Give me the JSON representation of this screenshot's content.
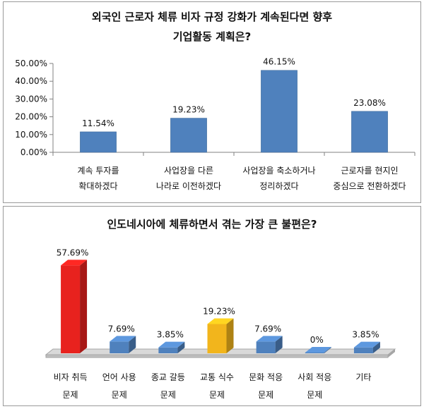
{
  "chart_data": [
    {
      "type": "bar",
      "title_lines": [
        "외국인 근로자 체류 비자 규정 강화가 계속된다면 향후",
        "기업활동 계획은?"
      ],
      "categories": [
        [
          "계속 투자를",
          "확대하겠다"
        ],
        [
          "사업장을 다른",
          "나라로 이전하겠다"
        ],
        [
          "사업장을 축소하거나",
          "정리하겠다"
        ],
        [
          "근로자를 현지인",
          "중심으로 전환하겠다"
        ]
      ],
      "values": [
        11.54,
        19.23,
        46.15,
        23.08
      ],
      "data_labels": [
        "11.54%",
        "19.23%",
        "46.15%",
        "23.08%"
      ],
      "yticks": [
        "0.00%",
        "10.00%",
        "20.00%",
        "30.00%",
        "40.00%",
        "50.00%"
      ],
      "ylim": [
        0,
        50
      ],
      "grid": false,
      "bar_color": "#4f81bd"
    },
    {
      "type": "bar",
      "subtype": "3d",
      "title": "인도네시아에 체류하면서 겪는 가장 큰 불편은?",
      "categories": [
        [
          "비자 취득",
          "문제"
        ],
        [
          "언어 사용",
          "문제"
        ],
        [
          "종교 갈등",
          "문제"
        ],
        [
          "교통 식수",
          "문제"
        ],
        [
          "문화 적응",
          "문제"
        ],
        [
          "사회 적응",
          "문제"
        ],
        [
          "기타"
        ]
      ],
      "values": [
        57.69,
        7.69,
        3.85,
        19.23,
        7.69,
        0,
        3.85
      ],
      "data_labels": [
        "57.69%",
        "7.69%",
        "3.85%",
        "19.23%",
        "7.69%",
        "0%",
        "3.85%"
      ],
      "colors": [
        "#e8221e",
        "#4f81bd",
        "#4f81bd",
        "#f2b51c",
        "#4f81bd",
        "#4f81bd",
        "#4f81bd"
      ],
      "ylim": [
        0,
        60
      ],
      "grid": false
    }
  ]
}
